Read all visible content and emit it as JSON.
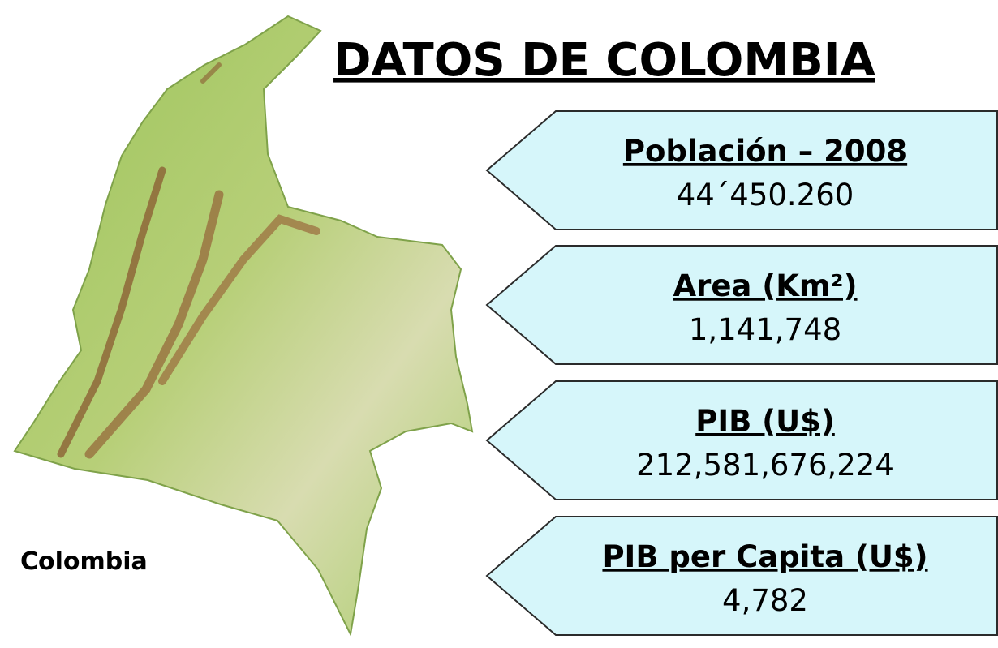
{
  "title": "DATOS DE COLOMBIA",
  "map_label": "Colombia",
  "items": [
    {
      "label": "Población – 2008",
      "value": "44´450.260"
    },
    {
      "label": "Area (Km²)",
      "value": "1,141,748"
    },
    {
      "label": "PIB (U$)",
      "value": "212,581,676,224"
    },
    {
      "label": "PIB per Capita (U$)",
      "value": "4,782"
    }
  ]
}
